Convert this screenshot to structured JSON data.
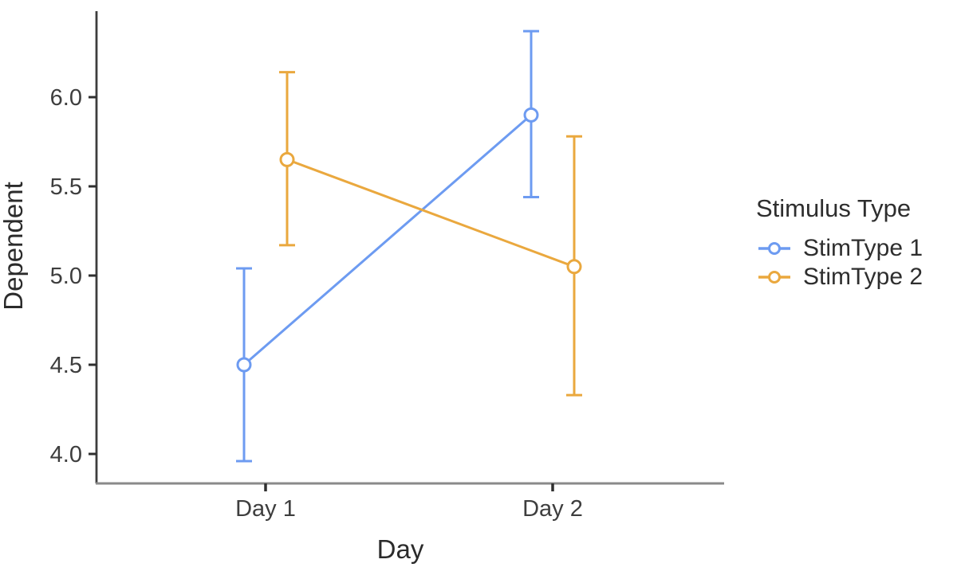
{
  "chart_data": {
    "type": "line",
    "subtype": "interaction-plot-with-error-bars",
    "title": "",
    "xlabel": "Day",
    "ylabel": "Dependent",
    "categories": [
      "Day 1",
      "Day 2"
    ],
    "series": [
      {
        "name": "StimType 1",
        "color": "#6D9BF1",
        "marker": "open-circle",
        "means": [
          4.5,
          5.9
        ],
        "lower": [
          3.96,
          5.44
        ],
        "upper": [
          5.04,
          6.37
        ]
      },
      {
        "name": "StimType 2",
        "color": "#EAA83E",
        "marker": "open-circle",
        "means": [
          5.65,
          5.05
        ],
        "lower": [
          5.17,
          4.33
        ],
        "upper": [
          6.14,
          5.78
        ]
      }
    ],
    "yticks": [
      6.0,
      5.5,
      5.0,
      4.5,
      4.0
    ],
    "ytick_labels": [
      "6.0",
      "5.5",
      "5.0",
      "4.5",
      "4.0"
    ],
    "ylim": [
      3.83,
      6.48
    ],
    "grid": false,
    "background": "#ffffff",
    "legend": {
      "title": "Stimulus Type",
      "position": "right",
      "entries": [
        "StimType 1",
        "StimType 2"
      ]
    },
    "axis": {
      "y_line_color": "#3d3d3d",
      "x_line_color": "#8a8a8a",
      "tick_color": "#2f2f2f",
      "tick_label_color": "#3e3e3e",
      "title_color": "#2b2b2b"
    }
  }
}
